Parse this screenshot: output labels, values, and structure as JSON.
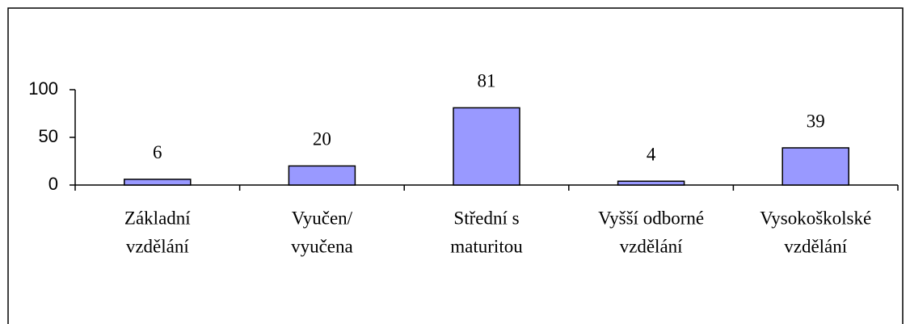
{
  "chart_data": {
    "type": "bar",
    "categories": [
      [
        "Základní",
        "vzdělání"
      ],
      [
        "Vyučen/",
        "vyučena"
      ],
      [
        "Střední s",
        "maturitou"
      ],
      [
        "Vyšší odborné",
        "vzdělání"
      ],
      [
        "Vysokoškolské",
        "vzdělání"
      ]
    ],
    "values": [
      6,
      20,
      81,
      4,
      39
    ],
    "color": "#9999ff",
    "ylim": [
      0,
      100
    ],
    "yticks": [
      0,
      50,
      100
    ],
    "grid": false
  }
}
